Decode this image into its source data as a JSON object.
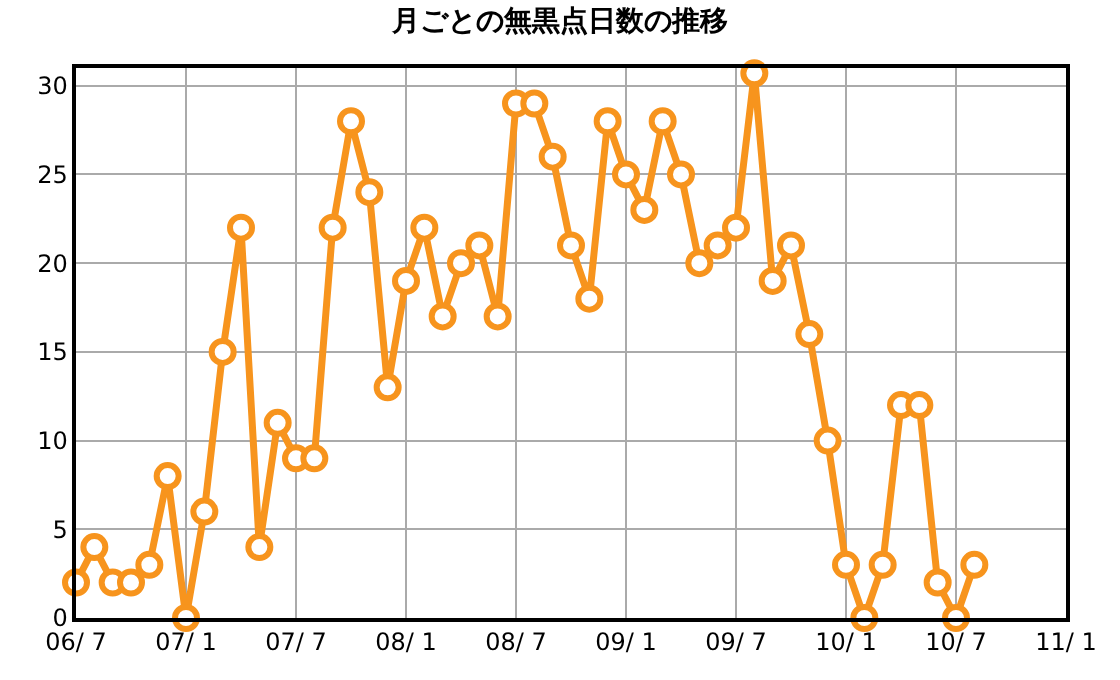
{
  "chart_data": {
    "type": "line",
    "title": "月ごとの無黒点日数の推移",
    "categories": [
      "06/ 7",
      null,
      null,
      null,
      null,
      null,
      "07/ 1",
      null,
      null,
      null,
      null,
      null,
      "07/ 7",
      null,
      null,
      null,
      null,
      null,
      "08/ 1",
      null,
      null,
      null,
      null,
      null,
      "08/ 7",
      null,
      null,
      null,
      null,
      null,
      "09/ 1",
      null,
      null,
      null,
      null,
      null,
      "09/ 7",
      null,
      null,
      null,
      null,
      null,
      "10/ 1",
      null,
      null,
      null,
      null,
      null,
      "10/ 7",
      null,
      null,
      null,
      null,
      null,
      "11/ 1"
    ],
    "series": [
      {
        "color": "#f7941d",
        "values": [
          2,
          4,
          2,
          2,
          3,
          8,
          0,
          6,
          15,
          22,
          4,
          11,
          9,
          9,
          22,
          28,
          24,
          13,
          19,
          22,
          17,
          20,
          21,
          17,
          29,
          29,
          26,
          21,
          18,
          28,
          25,
          23,
          28,
          25,
          20,
          21,
          22,
          30.7,
          19,
          21,
          16,
          10,
          3,
          0,
          3,
          12,
          12,
          2,
          0,
          3,
          null,
          null,
          null,
          null,
          null
        ]
      }
    ],
    "ylim": [
      0,
      31
    ],
    "yticks": [
      0,
      5,
      10,
      15,
      20,
      25,
      30
    ],
    "grid": true,
    "marker": "circle",
    "line_style": "solid",
    "legend": false
  }
}
